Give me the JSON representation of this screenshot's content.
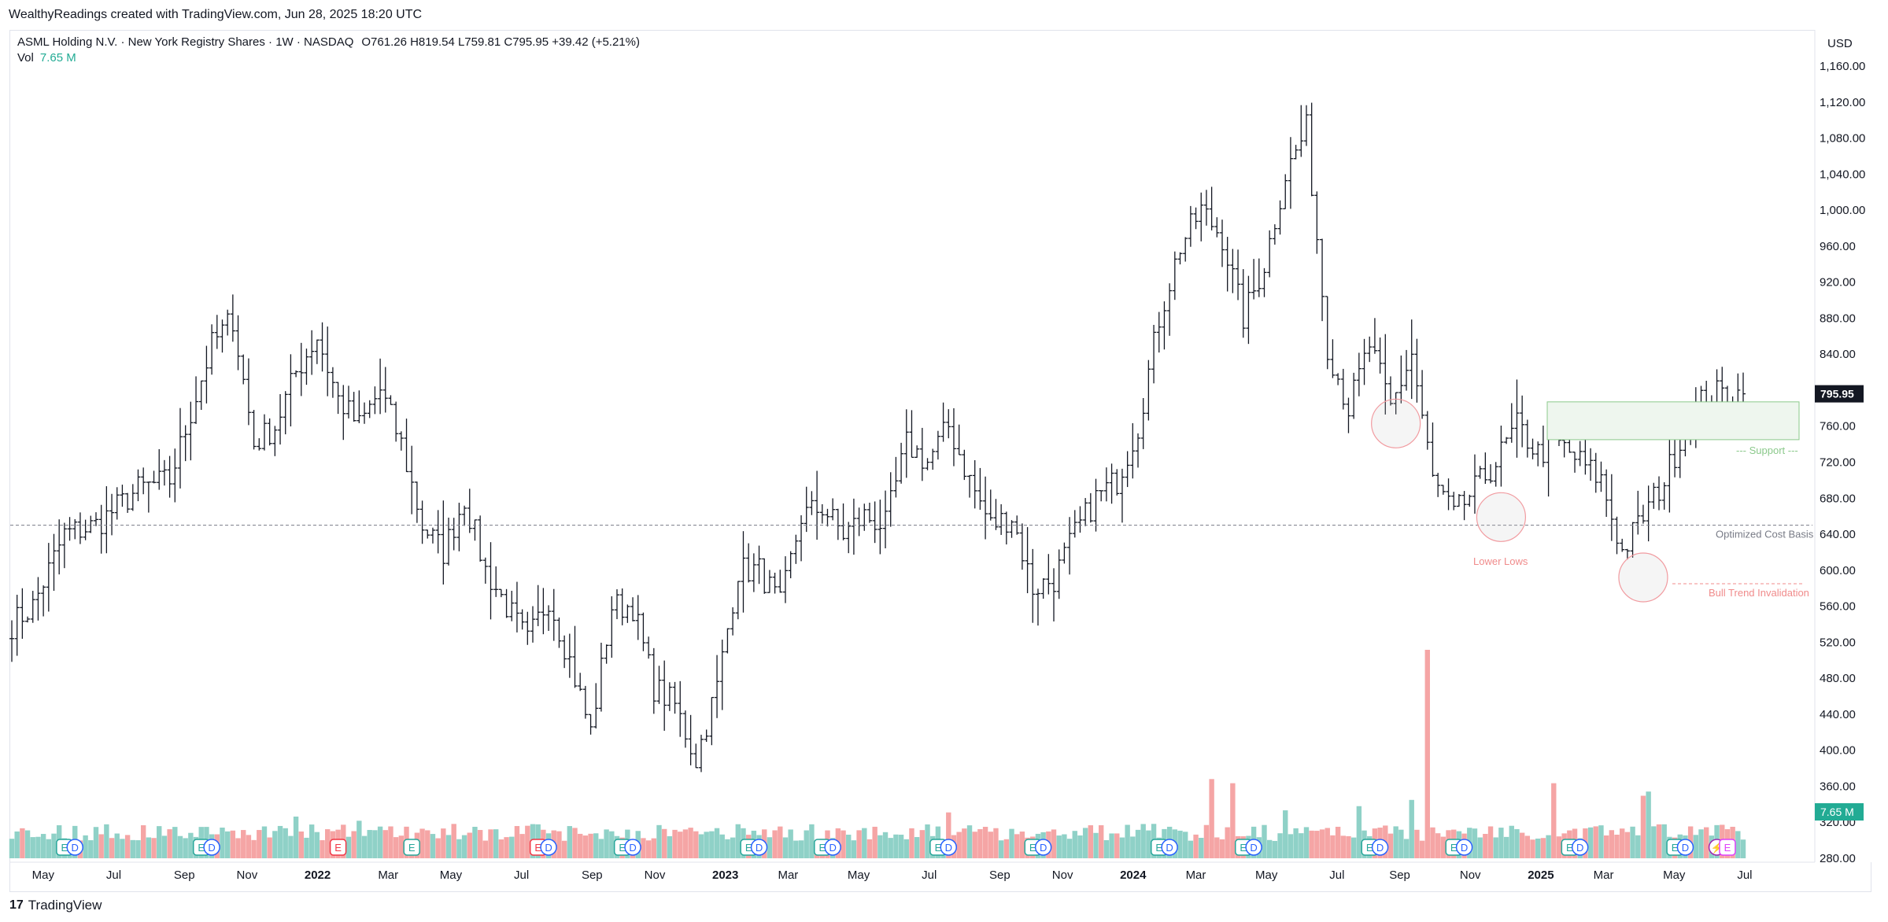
{
  "header": {
    "attribution": "WealthyReadings created with TradingView.com, Jun 28, 2025 18:20 UTC"
  },
  "legend": {
    "symbol": "ASML Holding N.V. · New York Registry Shares · 1W · NASDAQ",
    "ohlc": "O761.26  H819.54  L759.81  C795.95  +39.42 (+5.21%)",
    "vol_label": "Vol",
    "vol_value": "7.65 M"
  },
  "footer": {
    "logo": "17",
    "brand": "TradingView"
  },
  "colors": {
    "up_volume": "#8fd1c7",
    "down_volume": "#f5a5a5",
    "bar": "#131722",
    "circle": "#f19ba0",
    "support": "#8bc98b",
    "lower_lows": "#f08b8b",
    "invalidation": "#f08b8b",
    "cost_basis": "#787b86"
  },
  "chart_data": {
    "type": "ohlc-bar",
    "currency": "USD",
    "price_axis": {
      "ylim": [
        260,
        1180
      ],
      "ticks": [
        "1,160.00",
        "1,120.00",
        "1,080.00",
        "1,040.00",
        "1,000.00",
        "960.00",
        "920.00",
        "880.00",
        "840.00",
        "800.00",
        "760.00",
        "720.00",
        "680.00",
        "640.00",
        "600.00",
        "560.00",
        "520.00",
        "480.00",
        "440.00",
        "400.00",
        "360.00",
        "320.00",
        "280.00"
      ],
      "last_price_label": "795.95",
      "last_price": 795.95,
      "volume_label": "7.65 M"
    },
    "time_axis": {
      "labels": [
        "May",
        "Jul",
        "Sep",
        "Nov",
        "2022",
        "Mar",
        "May",
        "Jul",
        "Sep",
        "Nov",
        "2023",
        "Mar",
        "May",
        "Jul",
        "Sep",
        "Nov",
        "2024",
        "Mar",
        "May",
        "Jul",
        "Sep",
        "Nov",
        "2025",
        "Mar",
        "May",
        "Jul"
      ],
      "bold": [
        "2022",
        "2023",
        "2024",
        "2025"
      ]
    },
    "anchors": [
      [
        0,
        540
      ],
      [
        4,
        560
      ],
      [
        10,
        640
      ],
      [
        16,
        650
      ],
      [
        24,
        690
      ],
      [
        30,
        700
      ],
      [
        38,
        850
      ],
      [
        42,
        880
      ],
      [
        46,
        740
      ],
      [
        50,
        760
      ],
      [
        54,
        820
      ],
      [
        58,
        860
      ],
      [
        62,
        790
      ],
      [
        66,
        760
      ],
      [
        70,
        800
      ],
      [
        74,
        740
      ],
      [
        78,
        650
      ],
      [
        82,
        620
      ],
      [
        86,
        680
      ],
      [
        90,
        600
      ],
      [
        94,
        560
      ],
      [
        98,
        520
      ],
      [
        102,
        570
      ],
      [
        106,
        500
      ],
      [
        110,
        420
      ],
      [
        114,
        560
      ],
      [
        118,
        560
      ],
      [
        122,
        470
      ],
      [
        126,
        450
      ],
      [
        130,
        390
      ],
      [
        134,
        470
      ],
      [
        138,
        600
      ],
      [
        142,
        600
      ],
      [
        146,
        560
      ],
      [
        150,
        660
      ],
      [
        154,
        670
      ],
      [
        158,
        640
      ],
      [
        162,
        660
      ],
      [
        166,
        650
      ],
      [
        170,
        740
      ],
      [
        174,
        720
      ],
      [
        178,
        760
      ],
      [
        182,
        700
      ],
      [
        186,
        650
      ],
      [
        190,
        660
      ],
      [
        194,
        580
      ],
      [
        198,
        590
      ],
      [
        202,
        640
      ],
      [
        206,
        680
      ],
      [
        210,
        700
      ],
      [
        214,
        760
      ],
      [
        218,
        880
      ],
      [
        222,
        960
      ],
      [
        226,
        1000
      ],
      [
        230,
        970
      ],
      [
        234,
        880
      ],
      [
        238,
        940
      ],
      [
        242,
        1040
      ],
      [
        246,
        1090
      ],
      [
        250,
        850
      ],
      [
        254,
        780
      ],
      [
        258,
        850
      ],
      [
        262,
        780
      ],
      [
        266,
        840
      ],
      [
        270,
        700
      ],
      [
        274,
        660
      ],
      [
        278,
        690
      ],
      [
        282,
        720
      ],
      [
        286,
        760
      ],
      [
        290,
        730
      ],
      [
        294,
        740
      ],
      [
        298,
        720
      ],
      [
        302,
        700
      ],
      [
        306,
        620
      ],
      [
        310,
        660
      ],
      [
        314,
        700
      ],
      [
        318,
        760
      ],
      [
        322,
        796
      ]
    ],
    "last_bar": {
      "open": 761.26,
      "high": 819.54,
      "low": 759.81,
      "close": 795.95
    },
    "volume_spikes": {
      "54": 20,
      "66": 18,
      "178": 22,
      "228": 38,
      "232": 36,
      "242": 23,
      "256": 25,
      "266": 28,
      "269": 100,
      "293": 36,
      "310": 30,
      "311": 32
    },
    "levels": {
      "optimized_cost_basis": 650,
      "bull_trend_invalidation": 585,
      "support_zone": [
        745,
        787
      ]
    },
    "annotations": {
      "support": "--- Support ---",
      "optimized_cost_basis": "Optimized Cost Basis",
      "lower_lows": "Lower Lows",
      "bull_trend_invalidation": "Bull Trend Invalidation",
      "circles": [
        {
          "bar": 263,
          "price": 763
        },
        {
          "bar": 283,
          "price": 659
        },
        {
          "bar": 310,
          "price": 592
        }
      ]
    },
    "earnings_markers": [
      {
        "bar": 10,
        "type": "E"
      },
      {
        "bar": 12,
        "type": "D"
      },
      {
        "bar": 36,
        "type": "E"
      },
      {
        "bar": 38,
        "type": "D"
      },
      {
        "bar": 62,
        "type": "E",
        "red": true
      },
      {
        "bar": 76,
        "type": "E"
      },
      {
        "bar": 100,
        "type": "E",
        "red": true
      },
      {
        "bar": 102,
        "type": "D"
      },
      {
        "bar": 116,
        "type": "E"
      },
      {
        "bar": 118,
        "type": "D"
      },
      {
        "bar": 140,
        "type": "E"
      },
      {
        "bar": 142,
        "type": "D"
      },
      {
        "bar": 154,
        "type": "E"
      },
      {
        "bar": 156,
        "type": "D"
      },
      {
        "bar": 176,
        "type": "E"
      },
      {
        "bar": 178,
        "type": "D"
      },
      {
        "bar": 194,
        "type": "E"
      },
      {
        "bar": 196,
        "type": "D"
      },
      {
        "bar": 218,
        "type": "E"
      },
      {
        "bar": 220,
        "type": "D"
      },
      {
        "bar": 234,
        "type": "E"
      },
      {
        "bar": 236,
        "type": "D"
      },
      {
        "bar": 258,
        "type": "E"
      },
      {
        "bar": 260,
        "type": "D"
      },
      {
        "bar": 274,
        "type": "E"
      },
      {
        "bar": 276,
        "type": "D"
      },
      {
        "bar": 296,
        "type": "E"
      },
      {
        "bar": 298,
        "type": "D"
      },
      {
        "bar": 316,
        "type": "E"
      },
      {
        "bar": 318,
        "type": "D"
      },
      {
        "bar": 324,
        "type": "S"
      },
      {
        "bar": 326,
        "type": "E",
        "purple": true
      }
    ]
  }
}
